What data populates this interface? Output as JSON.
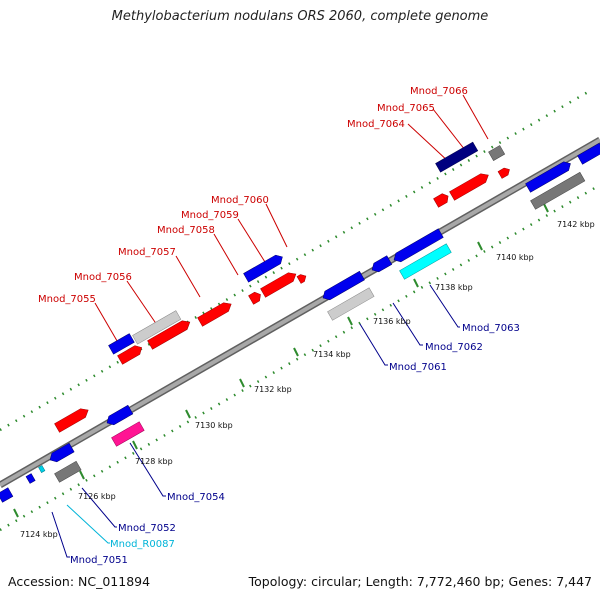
{
  "title": "Methylobacterium nodulans ORS 2060, complete genome",
  "footer": {
    "accession": "Accession: NC_011894",
    "topology": "Topology: circular; Length: 7,772,460 bp; Genes: 7,447"
  },
  "colors": {
    "forward_label": "#cc0000",
    "reverse_label": "#00008b",
    "rna_label": "#00b4d8",
    "backbone": "#8c8c8c",
    "tick": "#2e8b2e"
  },
  "kbp_ticks": [
    "7124 kbp",
    "7126 kbp",
    "7128 kbp",
    "7130 kbp",
    "7132 kbp",
    "7134 kbp",
    "7136 kbp",
    "7138 kbp",
    "7140 kbp",
    "7142 kbp"
  ],
  "forward_labels": [
    "Mnod_7055",
    "Mnod_7056",
    "Mnod_7057",
    "Mnod_7058",
    "Mnod_7059",
    "Mnod_7060",
    "Mnod_7064",
    "Mnod_7065",
    "Mnod_7066"
  ],
  "reverse_labels": [
    "Mnod_7051",
    "Mnod_R0087",
    "Mnod_7052",
    "Mnod_7054",
    "Mnod_7061",
    "Mnod_7062",
    "Mnod_7063"
  ]
}
